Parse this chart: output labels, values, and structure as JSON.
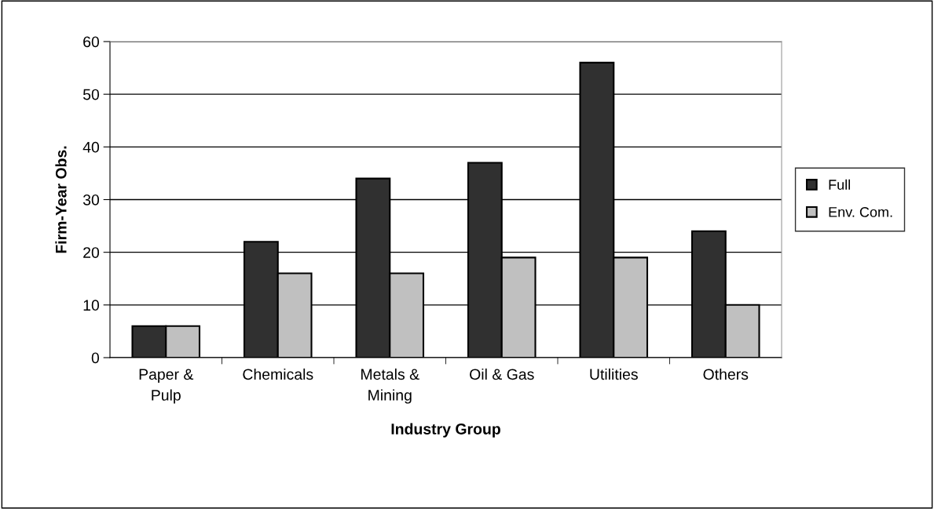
{
  "chart_data": {
    "type": "bar",
    "xlabel": "Industry Group",
    "ylabel": "Firm-Year Obs.",
    "categories": [
      "Paper &\nPulp",
      "Chemicals",
      "Metals &\nMining",
      "Oil & Gas",
      "Utilities",
      "Others"
    ],
    "series": [
      {
        "name": "Full",
        "color": "#303030",
        "values": [
          6,
          22,
          34,
          37,
          56,
          24
        ]
      },
      {
        "name": "Env. Com.",
        "color": "#c0c0c0",
        "values": [
          6,
          16,
          16,
          19,
          19,
          10
        ]
      }
    ],
    "ylim": [
      0,
      60
    ],
    "yticks": [
      0,
      10,
      20,
      30,
      40,
      50,
      60
    ],
    "grid": "y",
    "legend": "right"
  }
}
